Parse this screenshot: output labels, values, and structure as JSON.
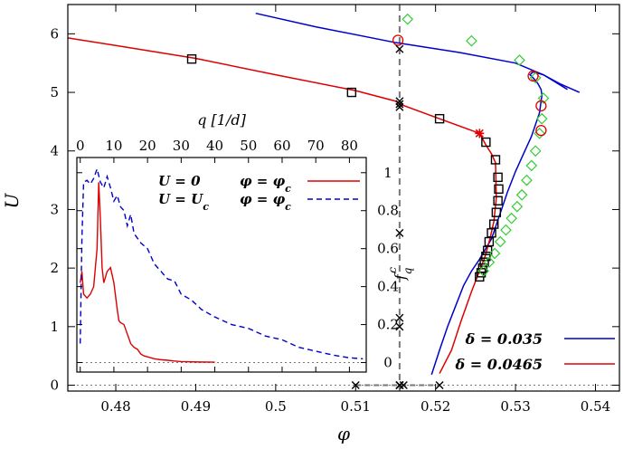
{
  "chart_data": {
    "type": "line",
    "xlabel": "φ",
    "ylabel": "U",
    "xlim": [
      0.474,
      0.543
    ],
    "ylim": [
      -0.1,
      6.5
    ],
    "xticks": [
      "0.48",
      "0.49",
      "0.5",
      "0.51",
      "0.52",
      "0.53",
      "0.54"
    ],
    "yticks": [
      "0",
      "1",
      "2",
      "3",
      "4",
      "5",
      "6"
    ],
    "xtick_values": [
      0.48,
      0.49,
      0.5,
      0.51,
      0.52,
      0.53,
      0.54
    ],
    "ytick_values": [
      0,
      1,
      2,
      3,
      4,
      5,
      6
    ],
    "legend": [
      {
        "label": "δ = 0.035",
        "color": "#0000cc"
      },
      {
        "label": "δ = 0.0465",
        "color": "#dd0000"
      }
    ],
    "series": [
      {
        "color": "#0000cc",
        "style": "line",
        "x": [
          0.5195,
          0.5205,
          0.5215,
          0.5225,
          0.5235,
          0.5245,
          0.5255,
          0.527,
          0.528,
          0.529,
          0.53,
          0.531,
          0.532,
          0.5325,
          0.533,
          0.5332,
          0.5333,
          0.5332,
          0.5328,
          0.5322,
          0.5318,
          0.5322,
          0.5335,
          0.5355,
          0.538
        ],
        "y": [
          0.18,
          0.6,
          1.0,
          1.35,
          1.7,
          1.95,
          2.15,
          2.5,
          2.9,
          3.3,
          3.65,
          3.95,
          4.25,
          4.45,
          4.65,
          4.85,
          4.95,
          5.05,
          5.15,
          5.25,
          5.3,
          5.35,
          5.3,
          5.15,
          5.0
        ]
      },
      {
        "color": "#0000cc",
        "style": "line",
        "x": [
          0.4975,
          0.505,
          0.515,
          0.523,
          0.53,
          0.5335,
          0.5365
        ],
        "y": [
          6.35,
          6.12,
          5.85,
          5.68,
          5.5,
          5.3,
          5.05
        ]
      },
      {
        "color": "#dd0000",
        "style": "line",
        "x": [
          0.474,
          0.48,
          0.49,
          0.5,
          0.51,
          0.515,
          0.5155,
          0.5205,
          0.5245,
          0.5255,
          0.5263,
          0.527,
          0.5275,
          0.5276,
          0.5273,
          0.5268,
          0.5262,
          0.5255,
          0.5245,
          0.5232,
          0.522,
          0.5205
        ],
        "y": [
          5.93,
          5.8,
          5.58,
          5.3,
          5.03,
          4.85,
          4.8,
          4.55,
          4.35,
          4.3,
          4.1,
          3.95,
          3.8,
          3.2,
          2.8,
          2.5,
          2.2,
          1.95,
          1.6,
          1.1,
          0.6,
          0.2
        ]
      },
      {
        "color": "#000000",
        "style": "square",
        "x": [
          0.4895,
          0.5095,
          0.5205,
          0.5263,
          0.5275,
          0.5278,
          0.5279,
          0.5278,
          0.5276,
          0.5273,
          0.527,
          0.5267,
          0.5265,
          0.5263,
          0.5261,
          0.5259,
          0.5257,
          0.5255
        ],
        "y": [
          5.57,
          5.0,
          4.55,
          4.15,
          3.85,
          3.55,
          3.35,
          3.15,
          2.95,
          2.75,
          2.6,
          2.45,
          2.3,
          2.2,
          2.1,
          2.0,
          1.92,
          1.85
        ]
      },
      {
        "color": "#33cc33",
        "style": "diamond",
        "x": [
          0.5165,
          0.5245,
          0.5305,
          0.5325,
          0.5335,
          0.5333,
          0.533,
          0.5325,
          0.532,
          0.5314,
          0.5308,
          0.5302,
          0.5295,
          0.5288,
          0.5281,
          0.5274,
          0.5267,
          0.526
        ],
        "y": [
          6.25,
          5.88,
          5.55,
          5.25,
          4.9,
          4.55,
          4.3,
          4.0,
          3.75,
          3.5,
          3.25,
          3.05,
          2.85,
          2.65,
          2.45,
          2.25,
          2.1,
          1.95
        ]
      },
      {
        "color": "#dd0000",
        "style": "circle",
        "x": [
          0.5153,
          0.5322,
          0.5332,
          0.5332
        ],
        "y": [
          5.89,
          5.28,
          4.77,
          4.35
        ]
      },
      {
        "color": "#000000",
        "style": "cross",
        "x": [
          0.5155,
          0.5155,
          0.5155,
          0.5155,
          0.5155,
          0.5155,
          0.5155,
          0.5155,
          0.5155,
          0.5155,
          0.51,
          0.5155,
          0.516,
          0.5205
        ],
        "y": [
          5.74,
          4.85,
          4.8,
          4.75,
          2.6,
          0.0,
          0.0,
          0.0,
          1.15,
          1.0,
          0.0,
          0.0,
          0.0,
          0.0
        ]
      },
      {
        "color": "#dd0000",
        "style": "star",
        "x": [
          0.5255
        ],
        "y": [
          4.3
        ]
      }
    ],
    "inset": {
      "title": "q [1/d]",
      "ylabel": "f_q^c",
      "xticks": [
        "0",
        "10",
        "20",
        "30",
        "40",
        "50",
        "60",
        "70",
        "80"
      ],
      "xtick_values": [
        0,
        10,
        20,
        30,
        40,
        50,
        60,
        70,
        80
      ],
      "yticks": [
        "0",
        "0.2",
        "0.4",
        "0.6",
        "0.8",
        "1"
      ],
      "ytick_values": [
        0,
        0.2,
        0.4,
        0.6,
        0.8,
        1
      ],
      "xlim": [
        -1,
        85
      ],
      "ylim": [
        -0.05,
        1.08
      ],
      "legend": [
        {
          "u": "U = 0",
          "phi": "φ = φ_c",
          "color": "#dd0000",
          "dash": false
        },
        {
          "u": "U = U_c",
          "phi": "φ = φ_c",
          "color": "#0000cc",
          "dash": true
        }
      ],
      "series": [
        {
          "color": "#dd0000",
          "dash": false,
          "x": [
            0,
            0.5,
            1,
            2,
            3,
            4,
            5,
            5.5,
            6,
            6.5,
            7,
            8,
            9,
            10,
            10.5,
            11,
            11.5,
            12,
            13,
            14,
            15,
            16,
            17,
            18,
            19,
            20,
            22,
            24,
            26,
            28,
            30,
            35,
            40
          ],
          "y": [
            0.42,
            0.48,
            0.36,
            0.34,
            0.36,
            0.4,
            0.6,
            0.95,
            0.75,
            0.5,
            0.42,
            0.48,
            0.5,
            0.42,
            0.35,
            0.28,
            0.22,
            0.21,
            0.2,
            0.15,
            0.1,
            0.08,
            0.07,
            0.045,
            0.035,
            0.03,
            0.02,
            0.015,
            0.012,
            0.008,
            0.005,
            0.003,
            0.002
          ]
        },
        {
          "color": "#0000cc",
          "dash": true,
          "x": [
            0,
            0.5,
            1,
            2,
            3,
            4,
            5,
            6,
            7,
            8,
            9,
            10,
            11,
            12,
            13,
            14,
            15,
            16,
            18,
            20,
            22,
            24,
            26,
            28,
            30,
            33,
            36,
            40,
            45,
            50,
            55,
            60,
            65,
            70,
            75,
            80,
            84
          ],
          "y": [
            0.1,
            0.65,
            0.95,
            0.96,
            0.94,
            0.97,
            1.02,
            0.95,
            0.92,
            0.98,
            0.92,
            0.85,
            0.88,
            0.82,
            0.8,
            0.72,
            0.78,
            0.68,
            0.63,
            0.6,
            0.52,
            0.48,
            0.44,
            0.43,
            0.36,
            0.33,
            0.28,
            0.24,
            0.2,
            0.18,
            0.14,
            0.12,
            0.08,
            0.06,
            0.04,
            0.025,
            0.02
          ]
        }
      ]
    }
  }
}
